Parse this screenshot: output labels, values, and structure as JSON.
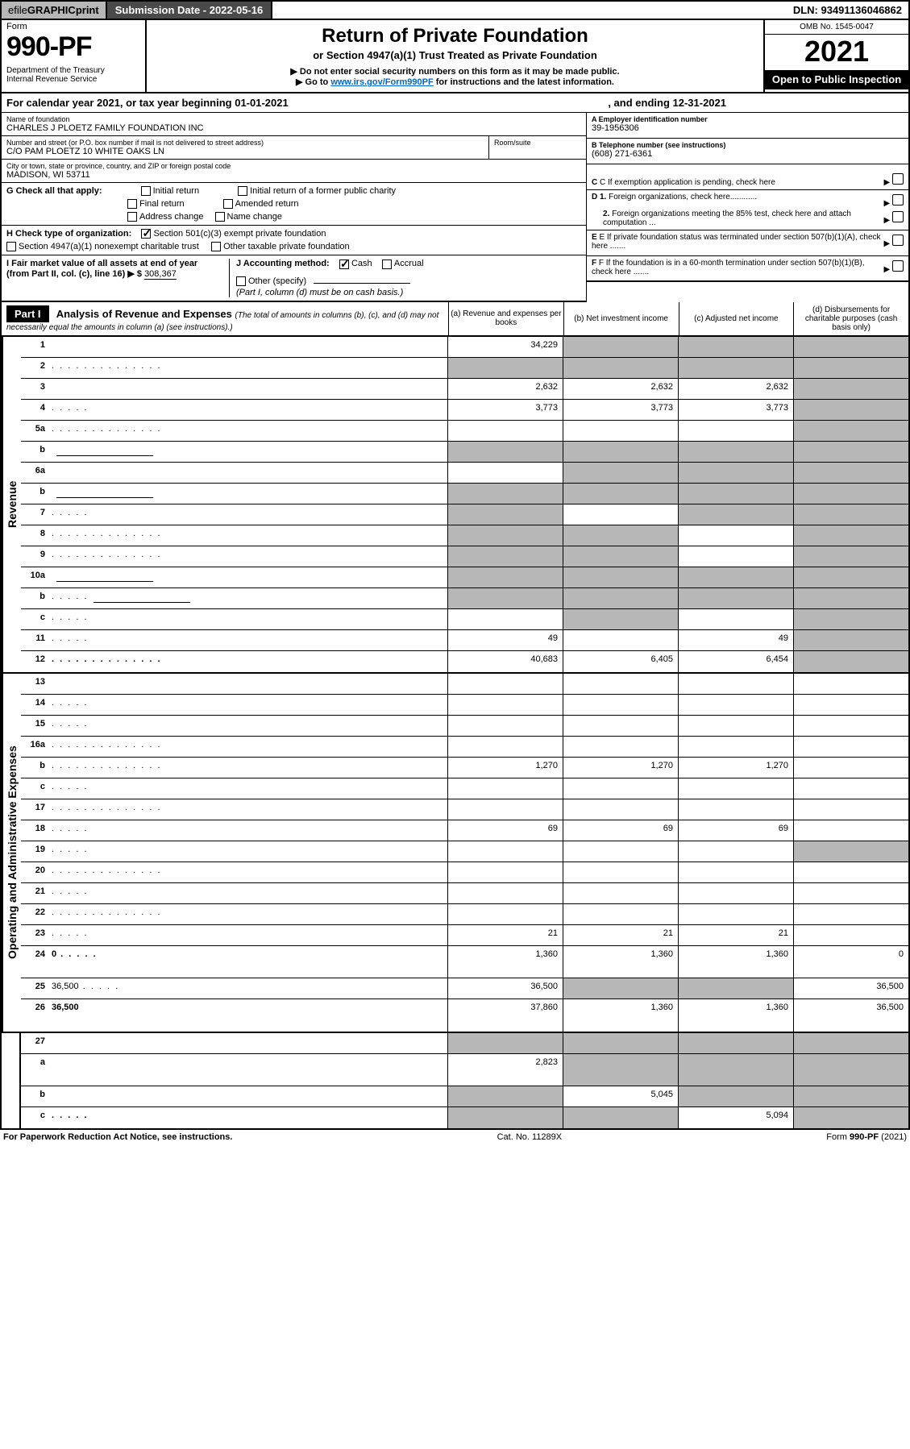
{
  "topbar": {
    "efile_prefix": "efile ",
    "efile_bold1": "GRAPHIC ",
    "efile_bold2": "print",
    "subdate": "Submission Date - 2022-05-16",
    "dln": "DLN: 93491136046862"
  },
  "title": {
    "form_word": "Form",
    "form_num": "990-PF",
    "dept": "Department of the Treasury\nInternal Revenue Service",
    "h1": "Return of Private Foundation",
    "sub1": "or Section 4947(a)(1) Trust Treated as Private Foundation",
    "sub2a": "▶ Do not enter social security numbers on this form as it may be made public.",
    "sub2b_pre": "▶ Go to ",
    "sub2b_link": "www.irs.gov/Form990PF",
    "sub2b_post": " for instructions and the latest information.",
    "omb": "OMB No. 1545-0047",
    "year": "2021",
    "open": "Open to Public Inspection"
  },
  "calyear": {
    "a": "For calendar year 2021, or tax year beginning 01-01-2021",
    "b": ", and ending 12-31-2021"
  },
  "info": {
    "name_lbl": "Name of foundation",
    "name_val": "CHARLES J PLOETZ FAMILY FOUNDATION INC",
    "addr_lbl": "Number and street (or P.O. box number if mail is not delivered to street address)",
    "addr_val": "C/O PAM PLOETZ 10 WHITE OAKS LN",
    "room_lbl": "Room/suite",
    "city_lbl": "City or town, state or province, country, and ZIP or foreign postal code",
    "city_val": "MADISON, WI  53711",
    "A_lbl": "A Employer identification number",
    "A_val": "39-1956306",
    "B_lbl": "B Telephone number (see instructions)",
    "B_val": "(608) 271-6361",
    "C_lbl": "C If exemption application is pending, check here",
    "D1_lbl": "D 1. Foreign organizations, check here",
    "D2_lbl": "2. Foreign organizations meeting the 85% test, check here and attach computation ...",
    "E_lbl": "E If private foundation status was terminated under section 507(b)(1)(A), check here .......",
    "F_lbl": "F If the foundation is in a 60-month termination under section 507(b)(1)(B), check here ......."
  },
  "G": {
    "lbl": "G Check all that apply:",
    "o1": "Initial return",
    "o2": "Final return",
    "o3": "Address change",
    "o4": "Initial return of a former public charity",
    "o5": "Amended return",
    "o6": "Name change"
  },
  "H": {
    "lbl": "H Check type of organization:",
    "o1": "Section 501(c)(3) exempt private foundation",
    "o2": "Section 4947(a)(1) nonexempt charitable trust",
    "o3": "Other taxable private foundation"
  },
  "I": {
    "lbl": "I Fair market value of all assets at end of year (from Part II, col. (c), line 16)  ▶ $ ",
    "val": "308,367"
  },
  "J": {
    "lbl": "J Accounting method:",
    "o1": "Cash",
    "o2": "Accrual",
    "o3": "Other (specify)",
    "note": "(Part I, column (d) must be on cash basis.)"
  },
  "part1": {
    "tag": "Part I",
    "title": "Analysis of Revenue and Expenses ",
    "sub": "(The total of amounts in columns (b), (c), and (d) may not necessarily equal the amounts in column (a) (see instructions).)",
    "ca": "(a) Revenue and expenses per books",
    "cb": "(b) Net investment income",
    "cc": "(c) Adjusted net income",
    "cd": "(d) Disbursements for charitable purposes (cash basis only)"
  },
  "side": {
    "rev": "Revenue",
    "exp": "Operating and Administrative Expenses"
  },
  "rows": [
    {
      "n": "1",
      "d": "",
      "a": "34,229",
      "b": "",
      "c": "",
      "bg": [
        "",
        "g",
        "g",
        "g"
      ]
    },
    {
      "n": "2",
      "d": "",
      "a": "",
      "b": "",
      "c": "",
      "bg": [
        "g",
        "g",
        "g",
        "g"
      ],
      "dotlong": true,
      "nob": true
    },
    {
      "n": "3",
      "d": "",
      "a": "2,632",
      "b": "2,632",
      "c": "2,632",
      "bg": [
        "",
        "",
        "",
        "g"
      ]
    },
    {
      "n": "4",
      "d": "",
      "a": "3,773",
      "b": "3,773",
      "c": "3,773",
      "bg": [
        "",
        "",
        "",
        "g"
      ],
      "dots": true
    },
    {
      "n": "5a",
      "d": "",
      "a": "",
      "b": "",
      "c": "",
      "bg": [
        "",
        "",
        "",
        "g"
      ],
      "dotlong": true
    },
    {
      "n": "b",
      "d": "",
      "a": "",
      "b": "",
      "c": "",
      "bg": [
        "g",
        "g",
        "g",
        "g"
      ],
      "sub": true
    },
    {
      "n": "6a",
      "d": "",
      "a": "",
      "b": "",
      "c": "",
      "bg": [
        "",
        "g",
        "g",
        "g"
      ]
    },
    {
      "n": "b",
      "d": "",
      "a": "",
      "b": "",
      "c": "",
      "bg": [
        "g",
        "g",
        "g",
        "g"
      ],
      "sub": true
    },
    {
      "n": "7",
      "d": "",
      "a": "",
      "b": "",
      "c": "",
      "bg": [
        "g",
        "",
        "g",
        "g"
      ],
      "dots": true
    },
    {
      "n": "8",
      "d": "",
      "a": "",
      "b": "",
      "c": "",
      "bg": [
        "g",
        "g",
        "",
        "g"
      ],
      "dotlong": true
    },
    {
      "n": "9",
      "d": "",
      "a": "",
      "b": "",
      "c": "",
      "bg": [
        "g",
        "g",
        "",
        "g"
      ],
      "dotlong": true
    },
    {
      "n": "10a",
      "d": "",
      "a": "",
      "b": "",
      "c": "",
      "bg": [
        "g",
        "g",
        "g",
        "g"
      ],
      "sub": true
    },
    {
      "n": "b",
      "d": "",
      "a": "",
      "b": "",
      "c": "",
      "bg": [
        "g",
        "g",
        "g",
        "g"
      ],
      "sub": true,
      "dots": true
    },
    {
      "n": "c",
      "d": "",
      "a": "",
      "b": "",
      "c": "",
      "bg": [
        "",
        "g",
        "",
        "g"
      ],
      "dots": true
    },
    {
      "n": "11",
      "d": "",
      "a": "49",
      "b": "",
      "c": "49",
      "bg": [
        "",
        "",
        "",
        "g"
      ],
      "dots": true
    },
    {
      "n": "12",
      "d": "",
      "a": "40,683",
      "b": "6,405",
      "c": "6,454",
      "bg": [
        "",
        "",
        "",
        "g"
      ],
      "bold": true,
      "dotlong": true
    }
  ],
  "rows2": [
    {
      "n": "13",
      "d": "",
      "a": "",
      "b": "",
      "c": "",
      "bg": [
        "",
        "",
        "",
        ""
      ]
    },
    {
      "n": "14",
      "d": "",
      "a": "",
      "b": "",
      "c": "",
      "bg": [
        "",
        "",
        "",
        ""
      ],
      "dots": true
    },
    {
      "n": "15",
      "d": "",
      "a": "",
      "b": "",
      "c": "",
      "bg": [
        "",
        "",
        "",
        ""
      ],
      "dots": true
    },
    {
      "n": "16a",
      "d": "",
      "a": "",
      "b": "",
      "c": "",
      "bg": [
        "",
        "",
        "",
        ""
      ],
      "dotlong": true
    },
    {
      "n": "b",
      "d": "",
      "a": "1,270",
      "b": "1,270",
      "c": "1,270",
      "bg": [
        "",
        "",
        "",
        ""
      ],
      "dotlong": true
    },
    {
      "n": "c",
      "d": "",
      "a": "",
      "b": "",
      "c": "",
      "bg": [
        "",
        "",
        "",
        ""
      ],
      "dots": true
    },
    {
      "n": "17",
      "d": "",
      "a": "",
      "b": "",
      "c": "",
      "bg": [
        "",
        "",
        "",
        ""
      ],
      "dotlong": true
    },
    {
      "n": "18",
      "d": "",
      "a": "69",
      "b": "69",
      "c": "69",
      "bg": [
        "",
        "",
        "",
        ""
      ],
      "dots": true
    },
    {
      "n": "19",
      "d": "",
      "a": "",
      "b": "",
      "c": "",
      "bg": [
        "",
        "",
        "",
        "g"
      ],
      "dots": true
    },
    {
      "n": "20",
      "d": "",
      "a": "",
      "b": "",
      "c": "",
      "bg": [
        "",
        "",
        "",
        ""
      ],
      "dotlong": true
    },
    {
      "n": "21",
      "d": "",
      "a": "",
      "b": "",
      "c": "",
      "bg": [
        "",
        "",
        "",
        ""
      ],
      "dots": true
    },
    {
      "n": "22",
      "d": "",
      "a": "",
      "b": "",
      "c": "",
      "bg": [
        "",
        "",
        "",
        ""
      ],
      "dotlong": true
    },
    {
      "n": "23",
      "d": "",
      "a": "21",
      "b": "21",
      "c": "21",
      "bg": [
        "",
        "",
        "",
        ""
      ],
      "dots": true
    },
    {
      "n": "24",
      "d": "0",
      "a": "1,360",
      "b": "1,360",
      "c": "1,360",
      "bg": [
        "",
        "",
        "",
        ""
      ],
      "bold": true,
      "dots": true,
      "tall": true
    },
    {
      "n": "25",
      "d": "36,500",
      "a": "36,500",
      "b": "",
      "c": "",
      "bg": [
        "",
        "g",
        "g",
        ""
      ],
      "dots": true
    },
    {
      "n": "26",
      "d": "36,500",
      "a": "37,860",
      "b": "1,360",
      "c": "1,360",
      "bg": [
        "",
        "",
        "",
        ""
      ],
      "bold": true,
      "tall": true
    }
  ],
  "rows3": [
    {
      "n": "27",
      "d": "",
      "a": "",
      "b": "",
      "c": "",
      "bg": [
        "g",
        "g",
        "g",
        "g"
      ]
    },
    {
      "n": "a",
      "d": "",
      "a": "2,823",
      "b": "",
      "c": "",
      "bg": [
        "",
        "g",
        "g",
        "g"
      ],
      "bold": true,
      "tall": true
    },
    {
      "n": "b",
      "d": "",
      "a": "",
      "b": "5,045",
      "c": "",
      "bg": [
        "g",
        "",
        "g",
        "g"
      ],
      "bold": true
    },
    {
      "n": "c",
      "d": "",
      "a": "",
      "b": "",
      "c": "5,094",
      "bg": [
        "g",
        "g",
        "",
        "g"
      ],
      "bold": true,
      "dots": true
    }
  ],
  "footer": {
    "l": "For Paperwork Reduction Act Notice, see instructions.",
    "c": "Cat. No. 11289X",
    "r": "Form 990-PF (2021)"
  },
  "colors": {
    "grey": "#b7b7b7",
    "darkgrey": "#4a4a4a",
    "link": "#0066cc",
    "black": "#000000",
    "white": "#ffffff"
  }
}
